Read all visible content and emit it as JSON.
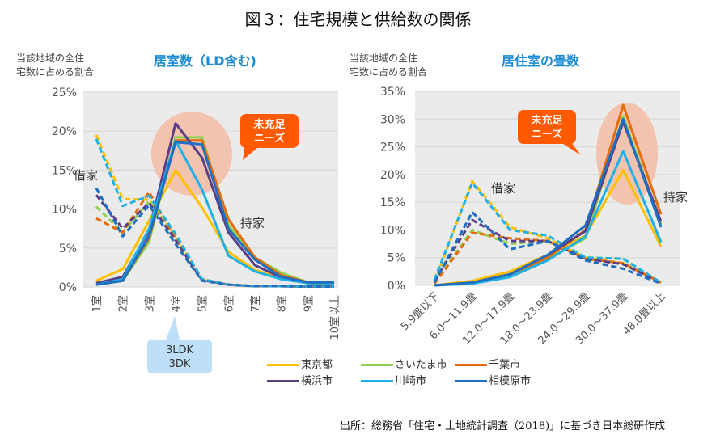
{
  "title": "図３：住宅規模と供給数の関係",
  "source": "出所：総務省「住宅・土地統計調査（2018)」に基づき日本総研作成",
  "colors": {
    "東京都": "#ffc000",
    "さいたま市": "#92d050",
    "千葉市": "#e46c0a",
    "横浜市": "#5b3f86",
    "川崎市": "#1fb0e6",
    "相模原市": "#1f6fc0",
    "highlight": "#f2c4b0",
    "callout_red": "#ff5a00",
    "callout_blue": "#bde0f8",
    "chart_title": "#1a8ad4",
    "plot_bg": "#ebebeb",
    "grid": "#d9d9d9"
  },
  "legend": [
    {
      "name": "東京都"
    },
    {
      "name": "さいたま市"
    },
    {
      "name": "千葉市"
    },
    {
      "name": "横浜市"
    },
    {
      "name": "川崎市"
    },
    {
      "name": "相模原市"
    }
  ],
  "chart_data": [
    {
      "type": "line",
      "title": "居室数（LD含む)",
      "ylabel": "当該地域の全住宅数に占める割合",
      "ylabel_lines": [
        "当該地域の全住",
        "宅数に占める割合"
      ],
      "xlabel": "",
      "ylim": [
        0,
        25
      ],
      "yticks": [
        0,
        5,
        10,
        15,
        20,
        25
      ],
      "ytick_labels": [
        "0%",
        "5%",
        "10%",
        "15%",
        "20%",
        "25%"
      ],
      "grid": true,
      "categories": [
        "1室",
        "2室",
        "3室",
        "4室",
        "5室",
        "6室",
        "7室",
        "8室",
        "9室",
        "10室以上"
      ],
      "annotations": {
        "rent": "借家",
        "own": "持家",
        "unmet": [
          "未充足",
          "ニーズ"
        ],
        "layout": [
          "3LDK",
          "3DK"
        ]
      },
      "series": [
        {
          "name": "東京都",
          "tenure": "持家",
          "values": [
            0.8,
            2.3,
            8.5,
            15.0,
            10.2,
            4.5,
            2.2,
            1.1,
            0.5,
            0.5
          ]
        },
        {
          "name": "さいたま市",
          "tenure": "持家",
          "values": [
            0.3,
            0.8,
            5.8,
            19.2,
            19.2,
            8.0,
            3.8,
            1.8,
            0.6,
            0.6
          ]
        },
        {
          "name": "千葉市",
          "tenure": "持家",
          "values": [
            0.3,
            0.8,
            6.3,
            18.8,
            18.8,
            8.7,
            3.8,
            1.5,
            0.6,
            0.6
          ]
        },
        {
          "name": "横浜市",
          "tenure": "持家",
          "values": [
            0.5,
            1.3,
            7.2,
            21.0,
            16.6,
            7.0,
            2.8,
            1.2,
            0.5,
            0.5
          ]
        },
        {
          "name": "川崎市",
          "tenure": "持家",
          "values": [
            0.3,
            1.0,
            7.5,
            18.8,
            12.5,
            4.0,
            2.0,
            1.0,
            0.5,
            0.5
          ]
        },
        {
          "name": "相模原市",
          "tenure": "持家",
          "values": [
            0.3,
            0.8,
            6.5,
            18.6,
            18.3,
            7.5,
            3.5,
            1.3,
            0.6,
            0.6
          ]
        },
        {
          "name": "東京都",
          "tenure": "借家",
          "values": [
            19.5,
            11.3,
            11.2,
            6.5,
            1.0,
            0.3,
            0.1,
            0.1,
            0.05,
            0.05
          ]
        },
        {
          "name": "さいたま市",
          "tenure": "借家",
          "values": [
            10.3,
            7.0,
            11.0,
            6.3,
            0.9,
            0.3,
            0.1,
            0.1,
            0.05,
            0.05
          ]
        },
        {
          "name": "千葉市",
          "tenure": "借家",
          "values": [
            8.8,
            7.0,
            12.2,
            6.2,
            1.0,
            0.3,
            0.1,
            0.1,
            0.05,
            0.05
          ]
        },
        {
          "name": "横浜市",
          "tenure": "借家",
          "values": [
            11.8,
            7.5,
            10.8,
            6.0,
            0.9,
            0.3,
            0.1,
            0.1,
            0.05,
            0.05
          ]
        },
        {
          "name": "川崎市",
          "tenure": "借家",
          "values": [
            19.0,
            10.4,
            11.7,
            6.8,
            1.0,
            0.3,
            0.1,
            0.1,
            0.05,
            0.05
          ]
        },
        {
          "name": "相模原市",
          "tenure": "借家",
          "values": [
            12.7,
            6.5,
            10.5,
            5.5,
            0.8,
            0.3,
            0.1,
            0.1,
            0.05,
            0.05
          ]
        }
      ]
    },
    {
      "type": "line",
      "title": "居住室の畳数",
      "ylabel": "当該地域の全住宅数に占める割合",
      "ylabel_lines": [
        "当該地域の全住",
        "宅数に占める割合"
      ],
      "xlabel": "",
      "ylim": [
        0,
        35
      ],
      "yticks": [
        0,
        5,
        10,
        15,
        20,
        25,
        30,
        35
      ],
      "ytick_labels": [
        "0%",
        "5%",
        "10%",
        "15%",
        "20%",
        "25%",
        "30%",
        "35%"
      ],
      "grid": true,
      "categories": [
        "5.9畳以下",
        "6.0～11.9畳",
        "12.0～17.9畳",
        "18.0～23.9畳",
        "24.0～29.9畳",
        "30.0～37.9畳",
        "48.0畳以上"
      ],
      "annotations": {
        "rent": "借家",
        "own": "持家",
        "unmet": [
          "未充足",
          "ニーズ"
        ]
      },
      "series": [
        {
          "name": "東京都",
          "tenure": "持家",
          "values": [
            0.0,
            0.8,
            2.5,
            5.5,
            9.0,
            20.8,
            7.0
          ]
        },
        {
          "name": "さいたま市",
          "tenure": "持家",
          "values": [
            0.0,
            0.3,
            2.0,
            4.8,
            8.5,
            30.5,
            11.0
          ]
        },
        {
          "name": "千葉市",
          "tenure": "持家",
          "values": [
            0.0,
            0.5,
            2.0,
            5.0,
            10.0,
            32.5,
            12.8
          ]
        },
        {
          "name": "横浜市",
          "tenure": "持家",
          "values": [
            0.0,
            0.5,
            2.0,
            5.5,
            9.8,
            29.5,
            11.5
          ]
        },
        {
          "name": "川崎市",
          "tenure": "持家",
          "values": [
            0.0,
            0.3,
            1.5,
            4.5,
            8.8,
            24.2,
            7.8
          ]
        },
        {
          "name": "相模原市",
          "tenure": "持家",
          "values": [
            0.0,
            0.5,
            2.0,
            5.5,
            10.8,
            30.0,
            10.5
          ]
        },
        {
          "name": "東京都",
          "tenure": "借家",
          "values": [
            0.5,
            18.8,
            10.5,
            8.5,
            5.0,
            4.0,
            0.5
          ]
        },
        {
          "name": "さいたま市",
          "tenure": "借家",
          "values": [
            0.3,
            10.0,
            7.5,
            8.0,
            5.0,
            4.8,
            0.5
          ]
        },
        {
          "name": "千葉市",
          "tenure": "借家",
          "values": [
            0.3,
            9.5,
            8.5,
            8.0,
            4.8,
            4.0,
            0.5
          ]
        },
        {
          "name": "横浜市",
          "tenure": "借家",
          "values": [
            0.8,
            11.8,
            8.0,
            8.0,
            4.8,
            3.8,
            0.5
          ]
        },
        {
          "name": "川崎市",
          "tenure": "借家",
          "values": [
            1.0,
            18.5,
            10.0,
            9.0,
            5.0,
            4.8,
            0.5
          ]
        },
        {
          "name": "相模原市",
          "tenure": "借家",
          "values": [
            0.5,
            13.2,
            6.5,
            8.0,
            4.5,
            3.0,
            0.3
          ]
        }
      ]
    }
  ]
}
